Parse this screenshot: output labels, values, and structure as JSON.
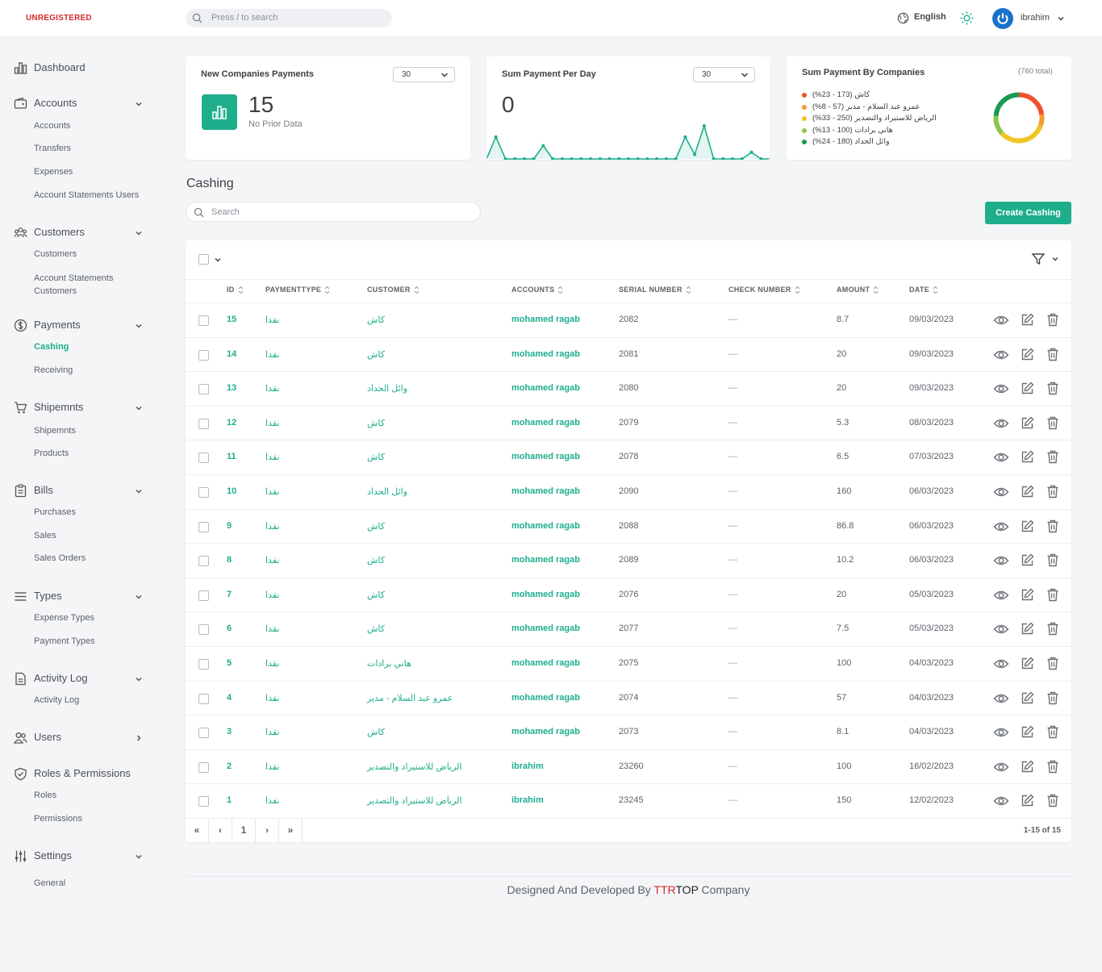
{
  "header": {
    "brand": "UNREGISTERED",
    "search_placeholder": "Press / to search",
    "language": "English",
    "username": "ibrahim"
  },
  "sidebar": {
    "groups": [
      {
        "label": "Dashboard",
        "icon": "chart-icon",
        "items": []
      },
      {
        "label": "Accounts",
        "icon": "wallet-icon",
        "items": [
          "Accounts",
          "Transfers",
          "Expenses",
          "Account Statements Users"
        ]
      },
      {
        "label": "Customers",
        "icon": "people-icon",
        "items": [
          "Customers",
          "Account Statements",
          "Customers"
        ]
      },
      {
        "label": "Payments",
        "icon": "dollar-icon",
        "items": [
          "Cashing",
          "Receiving"
        ]
      },
      {
        "label": "Shipemnts",
        "icon": "cart-icon",
        "items": [
          "Shipemnts",
          "Products"
        ]
      },
      {
        "label": "Bills",
        "icon": "clipboard-icon",
        "items": [
          "Purchases",
          "Sales",
          "Sales Orders"
        ]
      },
      {
        "label": "Types",
        "icon": "menu-icon",
        "items": [
          "Expense Types",
          "Payment Types"
        ]
      },
      {
        "label": "Activity Log",
        "icon": "document-icon",
        "items": [
          "Activity Log"
        ]
      },
      {
        "label": "Users",
        "icon": "users-icon",
        "items": []
      },
      {
        "label": "Roles & Permissions",
        "icon": "shield-icon",
        "items": [
          "Roles",
          "Permissions"
        ]
      },
      {
        "label": "Settings",
        "icon": "sliders-icon",
        "items": [
          "General"
        ]
      }
    ],
    "active_item": "Cashing"
  },
  "cards": {
    "new_companies": {
      "title": "New Companies Payments",
      "select": "30",
      "value": "15",
      "note": "No Prior Data"
    },
    "sum_per_day": {
      "title": "Sum Payment Per Day",
      "select": "30",
      "value": "0"
    },
    "by_companies": {
      "title": "Sum Payment By Companies",
      "total": "(760 total)",
      "legend": [
        {
          "text": "كاش (173 - 23%)",
          "color": "#f0522f"
        },
        {
          "text": "عمرو عبد السلام - مدير (57 - 8%)",
          "color": "#f39a2e"
        },
        {
          "text": "الرياض للاستيراد والتصدير (250 - 33%)",
          "color": "#f2c526"
        },
        {
          "text": "هاني برادات (100 - 13%)",
          "color": "#8cc64d"
        },
        {
          "text": "وائل الحداد (180 - 24%)",
          "color": "#1a9a52"
        }
      ]
    }
  },
  "chart_data": [
    {
      "type": "area",
      "title": "Sum Payment Per Day",
      "values": [
        0,
        2,
        0,
        0,
        0,
        0,
        1.2,
        0,
        0,
        0,
        0,
        0,
        0,
        0,
        0,
        0,
        0,
        0,
        0,
        0,
        0,
        2,
        0.4,
        3,
        0,
        0,
        0,
        0,
        0.6,
        0,
        0
      ]
    },
    {
      "type": "pie",
      "title": "Sum Payment By Companies",
      "labels": [
        "كاش",
        "عمرو عبد السلام - مدير",
        "الرياض للاستيراد والتصدير",
        "هاني برادات",
        "وائل الحداد"
      ],
      "values": [
        173,
        57,
        250,
        100,
        180
      ],
      "colors": [
        "#f0522f",
        "#f39a2e",
        "#f2c526",
        "#8cc64d",
        "#1a9a52"
      ]
    }
  ],
  "page": {
    "title": "Cashing",
    "search_placeholder": "Search",
    "create_button": "Create Cashing"
  },
  "table": {
    "columns": [
      "ID",
      "PAYMENTTYPE",
      "CUSTOMER",
      "ACCOUNTS",
      "SERIAL NUMBER",
      "CHECK NUMBER",
      "AMOUNT",
      "DATE"
    ],
    "rows": [
      {
        "id": "15",
        "type": "نقدا",
        "customer": "كاش",
        "account": "mohamed ragab",
        "serial": "2082",
        "check": "—",
        "amount": "8.7",
        "date": "09/03/2023"
      },
      {
        "id": "14",
        "type": "نقدا",
        "customer": "كاش",
        "account": "mohamed ragab",
        "serial": "2081",
        "check": "—",
        "amount": "20",
        "date": "09/03/2023"
      },
      {
        "id": "13",
        "type": "نقدا",
        "customer": "وائل الحداد",
        "account": "mohamed ragab",
        "serial": "2080",
        "check": "—",
        "amount": "20",
        "date": "09/03/2023"
      },
      {
        "id": "12",
        "type": "نقدا",
        "customer": "كاش",
        "account": "mohamed ragab",
        "serial": "2079",
        "check": "—",
        "amount": "5.3",
        "date": "08/03/2023"
      },
      {
        "id": "11",
        "type": "نقدا",
        "customer": "كاش",
        "account": "mohamed ragab",
        "serial": "2078",
        "check": "—",
        "amount": "6.5",
        "date": "07/03/2023"
      },
      {
        "id": "10",
        "type": "نقدا",
        "customer": "وائل الحداد",
        "account": "mohamed ragab",
        "serial": "2090",
        "check": "—",
        "amount": "160",
        "date": "06/03/2023"
      },
      {
        "id": "9",
        "type": "نقدا",
        "customer": "كاش",
        "account": "mohamed ragab",
        "serial": "2088",
        "check": "—",
        "amount": "86.8",
        "date": "06/03/2023"
      },
      {
        "id": "8",
        "type": "نقدا",
        "customer": "كاش",
        "account": "mohamed ragab",
        "serial": "2089",
        "check": "—",
        "amount": "10.2",
        "date": "06/03/2023"
      },
      {
        "id": "7",
        "type": "نقدا",
        "customer": "كاش",
        "account": "mohamed ragab",
        "serial": "2076",
        "check": "—",
        "amount": "20",
        "date": "05/03/2023"
      },
      {
        "id": "6",
        "type": "نقدا",
        "customer": "كاش",
        "account": "mohamed ragab",
        "serial": "2077",
        "check": "—",
        "amount": "7.5",
        "date": "05/03/2023"
      },
      {
        "id": "5",
        "type": "نقدا",
        "customer": "هاني برادات",
        "account": "mohamed ragab",
        "serial": "2075",
        "check": "—",
        "amount": "100",
        "date": "04/03/2023"
      },
      {
        "id": "4",
        "type": "نقدا",
        "customer": "عمرو عبد السلام - مدير",
        "account": "mohamed ragab",
        "serial": "2074",
        "check": "—",
        "amount": "57",
        "date": "04/03/2023"
      },
      {
        "id": "3",
        "type": "نقدا",
        "customer": "كاش",
        "account": "mohamed ragab",
        "serial": "2073",
        "check": "—",
        "amount": "8.1",
        "date": "04/03/2023"
      },
      {
        "id": "2",
        "type": "نقدا",
        "customer": "الرياض للاستيراد والتصدير",
        "account": "ibrahim",
        "serial": "23260",
        "check": "—",
        "amount": "100",
        "date": "16/02/2023"
      },
      {
        "id": "1",
        "type": "نقدا",
        "customer": "الرياض للاستيراد والتصدير",
        "account": "ibrahim",
        "serial": "23245",
        "check": "—",
        "amount": "150",
        "date": "12/02/2023"
      }
    ]
  },
  "pagination": {
    "first": "«",
    "prev": "‹",
    "current": "1",
    "next": "›",
    "last": "»",
    "info": "1-15 of 15"
  },
  "footer": {
    "prefix": "Designed And Developed By ",
    "brand_red": "TTR",
    "brand_dark": "TOP",
    "suffix": " Company"
  }
}
